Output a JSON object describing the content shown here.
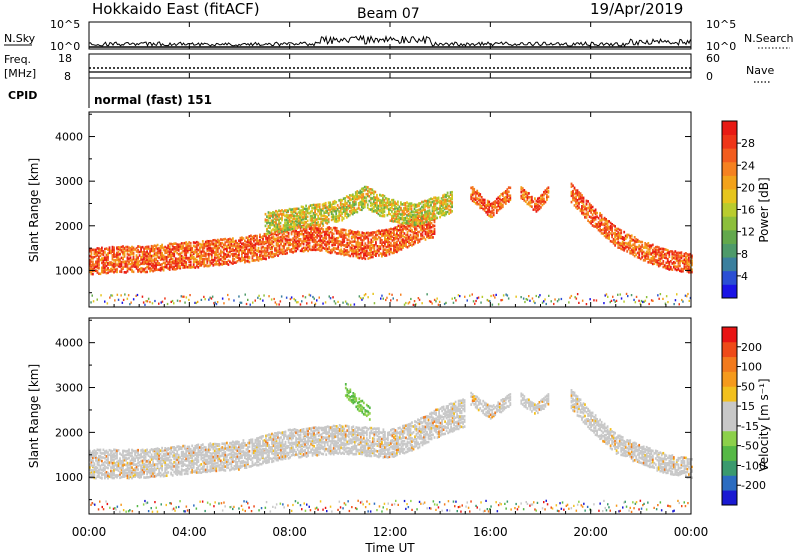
{
  "header": {
    "station": "Hokkaido East (fitACF)",
    "beam": "Beam 07",
    "date": "19/Apr/2019"
  },
  "top_panels": {
    "nsky_label": "N.Sky",
    "nsky_top": "10^5",
    "nsky_bottom": "10^0",
    "nsearch_label": "N.Search",
    "nsearch_top": "10^5",
    "nsearch_bottom": "10^0",
    "freq_label_1": "Freq.",
    "freq_label_2": "[MHz]",
    "freq_top": "18",
    "freq_bottom": "8",
    "nave_label": "Nave",
    "nave_top": "60",
    "nave_bottom": "0",
    "cpid_label": "CPID",
    "cpid_value": "normal (fast) 151"
  },
  "x_axis": {
    "label": "Time UT",
    "ticks": [
      "00:00",
      "04:00",
      "08:00",
      "12:00",
      "16:00",
      "20:00",
      "00:00"
    ]
  },
  "chart_data": [
    {
      "type": "heatmap",
      "name": "power",
      "ylabel": "Slant Range [km]",
      "yticks": [
        1000,
        2000,
        3000,
        4000
      ],
      "ylim": [
        180,
        4550
      ],
      "xlim_hours": [
        0,
        24
      ],
      "colorbar": {
        "label": "Power [dB]",
        "ticks": [
          "4",
          "8",
          "12",
          "16",
          "20",
          "24",
          "28"
        ],
        "range": [
          0,
          30
        ],
        "colors": [
          "#1a14e6",
          "#2a4fd4",
          "#3a7f9e",
          "#4d9a6a",
          "#62a84c",
          "#8cbf3b",
          "#b9cc2e",
          "#e6c51e",
          "#f2a21a",
          "#f58120",
          "#f25c1e",
          "#ee3518",
          "#e81a14"
        ]
      },
      "echo_bands": [
        {
          "t_start": 0.0,
          "t_end": 13.8,
          "range_points": [
            [
              0,
              1250
            ],
            [
              1,
              1300
            ],
            [
              2,
              1300
            ],
            [
              3,
              1350
            ],
            [
              4,
              1400
            ],
            [
              5,
              1450
            ],
            [
              6,
              1500
            ],
            [
              7,
              1600
            ],
            [
              8,
              1750
            ],
            [
              9,
              1800
            ],
            [
              10,
              1700
            ],
            [
              11,
              1600
            ],
            [
              12,
              1700
            ],
            [
              13,
              1950
            ],
            [
              13.8,
              2100
            ]
          ],
          "thickness_km": 600,
          "level": "high"
        },
        {
          "t_start": 7.0,
          "t_end": 14.5,
          "range_points": [
            [
              7,
              2100
            ],
            [
              9,
              2300
            ],
            [
              10,
              2400
            ],
            [
              11,
              2700
            ],
            [
              12,
              2400
            ],
            [
              13,
              2300
            ],
            [
              14.5,
              2600
            ]
          ],
          "thickness_km": 500,
          "level": "mid"
        },
        {
          "t_start": 15.2,
          "t_end": 16.8,
          "range_points": [
            [
              15.2,
              2800
            ],
            [
              16,
              2400
            ],
            [
              16.8,
              2800
            ]
          ],
          "thickness_km": 350,
          "level": "high"
        },
        {
          "t_start": 17.2,
          "t_end": 18.3,
          "range_points": [
            [
              17.2,
              2800
            ],
            [
              17.8,
              2500
            ],
            [
              18.3,
              2800
            ]
          ],
          "thickness_km": 300,
          "level": "high"
        },
        {
          "t_start": 19.2,
          "t_end": 24.0,
          "range_points": [
            [
              19.2,
              2800
            ],
            [
              20,
              2300
            ],
            [
              21,
              1800
            ],
            [
              22,
              1500
            ],
            [
              23,
              1300
            ],
            [
              24,
              1200
            ]
          ],
          "thickness_km": 450,
          "level": "high"
        }
      ]
    },
    {
      "type": "heatmap",
      "name": "velocity",
      "ylabel": "Slant Range [km]",
      "yticks": [
        1000,
        2000,
        3000,
        4000
      ],
      "ylim": [
        180,
        4550
      ],
      "xlim_hours": [
        0,
        24
      ],
      "colorbar": {
        "label": "Velocity [m s⁻¹]",
        "ticks": [
          "200",
          "100",
          "50",
          "15",
          "-15",
          "-50",
          "-100",
          "-200"
        ],
        "range": [
          -250,
          250
        ],
        "colors": [
          "#1a1ad2",
          "#2b6cc0",
          "#3a9a6e",
          "#55b845",
          "#8cd04a",
          "#c8c8c8",
          "#c8c8c8",
          "#f2c01e",
          "#f59a1c",
          "#f27a1c",
          "#ee4a18",
          "#e81414"
        ]
      },
      "echo_bands": [
        {
          "t_start": 0.0,
          "t_end": 15.0,
          "range_points": [
            [
              0,
              1350
            ],
            [
              2,
              1350
            ],
            [
              4,
              1450
            ],
            [
              6,
              1550
            ],
            [
              8,
              1800
            ],
            [
              10,
              1900
            ],
            [
              12,
              1800
            ],
            [
              13,
              2000
            ],
            [
              14,
              2300
            ],
            [
              15,
              2500
            ]
          ],
          "thickness_km": 650,
          "level": "grey"
        },
        {
          "t_start": 10.2,
          "t_end": 11.2,
          "range_points": [
            [
              10.2,
              3000
            ],
            [
              10.7,
              2700
            ],
            [
              11.2,
              2450
            ]
          ],
          "thickness_km": 300,
          "level": "green"
        },
        {
          "t_start": 15.2,
          "t_end": 16.8,
          "range_points": [
            [
              15.2,
              2800
            ],
            [
              16,
              2500
            ],
            [
              16.8,
              2800
            ]
          ],
          "thickness_km": 300,
          "level": "grey"
        },
        {
          "t_start": 17.2,
          "t_end": 18.3,
          "range_points": [
            [
              17.2,
              2800
            ],
            [
              17.8,
              2550
            ],
            [
              18.3,
              2800
            ]
          ],
          "thickness_km": 250,
          "level": "grey"
        },
        {
          "t_start": 19.2,
          "t_end": 24.0,
          "range_points": [
            [
              19.2,
              2800
            ],
            [
              20,
              2300
            ],
            [
              21,
              1800
            ],
            [
              22,
              1550
            ],
            [
              23,
              1350
            ],
            [
              24,
              1250
            ]
          ],
          "thickness_km": 450,
          "level": "grey"
        }
      ]
    }
  ]
}
